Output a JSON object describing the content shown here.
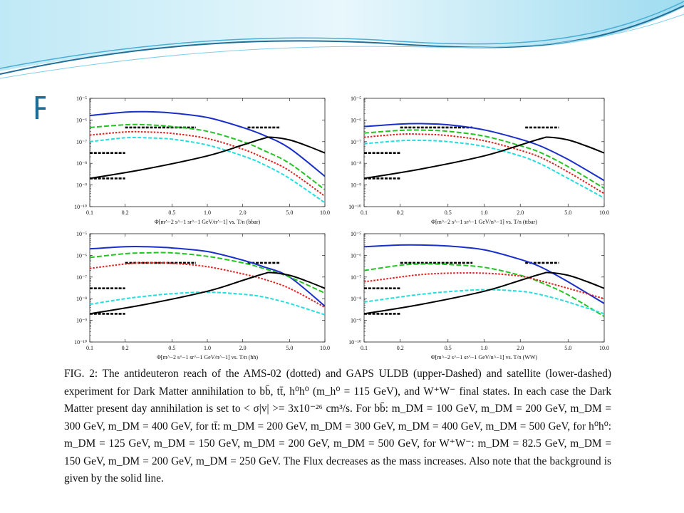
{
  "slide": {
    "title_fragment": "F"
  },
  "caption": "FIG. 2: The antideuteron reach of the AMS-02 (dotted) and GAPS ULDB (upper-Dashed) and satellite (lower-dashed) experiment for Dark Matter annihilation to bb̄, tt̄, h⁰h⁰ (m_h⁰ = 115 GeV), and W⁺W⁻ final states. In each case the Dark Matter present day annihilation is set to < σ|v| >= 3x10⁻²⁶ cm³/s. For bb̄: m_DM = 100 GeV, m_DM = 200 GeV, m_DM = 300 GeV, m_DM = 400 GeV, for tt̄: m_DM = 200 GeV, m_DM = 300 GeV, m_DM = 400 GeV, m_DM = 500 GeV, for h⁰h⁰: m_DM = 125 GeV, m_DM = 150 GeV, m_DM = 200 GeV, m_DM = 500 GeV, for W⁺W⁻: m_DM = 82.5 GeV, m_DM = 150 GeV, m_DM = 200 GeV, m_DM = 250 GeV. The Flux decreases as the mass increases. Also note that the background is given by the solid line.",
  "colors": {
    "header_dark": "#1f6f98",
    "header_light": "#7fd0ec",
    "title": "#1a6e99"
  },
  "chart_data": [
    {
      "type": "line",
      "xlabel": "Φ[m^−2 s^−1 sr^−1 GeV/n^−1] vs. T/n (bbar)",
      "xscale": "log",
      "yscale": "log",
      "xlim": [
        0.1,
        10.0
      ],
      "ylim": [
        1e-10,
        1e-05
      ],
      "xticks": [
        "0.1",
        "0.2",
        "0.5",
        "1.0",
        "2.0",
        "5.0",
        "10.0"
      ],
      "yticks": [
        "10⁻¹⁰",
        "10⁻⁹",
        "10⁻⁸",
        "10⁻⁷",
        "10⁻⁶",
        "10⁻⁵"
      ],
      "series": [
        {
          "style": "solid",
          "color": "#1a2fc9",
          "x": [
            0.1,
            0.2,
            0.3,
            0.5,
            1,
            2,
            3,
            5,
            10
          ],
          "y": [
            1.6e-06,
            2.3e-06,
            2.4e-06,
            2.1e-06,
            1.3e-06,
            4.5e-07,
            2e-07,
            5e-08,
            2.5e-09
          ]
        },
        {
          "style": "dashed",
          "color": "#22c422",
          "x": [
            0.1,
            0.2,
            0.3,
            0.5,
            1,
            2,
            3,
            5,
            10
          ],
          "y": [
            4.5e-07,
            6e-07,
            6e-07,
            5e-07,
            3e-07,
            1e-07,
            4e-08,
            1e-08,
            6e-10
          ]
        },
        {
          "style": "dotted",
          "color": "#e02020",
          "x": [
            0.1,
            0.2,
            0.3,
            0.5,
            1,
            2,
            3,
            5,
            10
          ],
          "y": [
            2e-07,
            2.8e-07,
            2.8e-07,
            2.4e-07,
            1.4e-07,
            4.5e-08,
            1.8e-08,
            4.5e-09,
            3e-10
          ]
        },
        {
          "style": "dashdot",
          "color": "#22dede",
          "x": [
            0.1,
            0.2,
            0.3,
            0.5,
            1,
            2,
            3,
            5,
            10
          ],
          "y": [
            1e-07,
            1.5e-07,
            1.5e-07,
            1.3e-07,
            7e-08,
            2.2e-08,
            9e-09,
            2e-09,
            1.5e-10
          ]
        },
        {
          "style": "solid",
          "color": "#000000",
          "x": [
            0.1,
            0.3,
            1,
            2,
            3,
            3.5,
            5,
            7,
            10
          ],
          "y": [
            2e-09,
            5.5e-09,
            2.2e-08,
            7e-08,
            1.4e-07,
            1.6e-07,
            1.2e-07,
            6.5e-08,
            3e-08
          ]
        }
      ],
      "sensitivity": [
        {
          "x": [
            0.1,
            0.2
          ],
          "y": 2e-09
        },
        {
          "x": [
            0.1,
            0.2
          ],
          "y": 3e-08
        },
        {
          "x": [
            0.2,
            0.8
          ],
          "y": 4.5e-07
        },
        {
          "x": [
            2.2,
            4.2
          ],
          "y": 4.5e-07
        }
      ]
    },
    {
      "type": "line",
      "xlabel": "Φ[m^−2 s^−1 sr^−1 GeV/n^−1] vs. T/n (ttbar)",
      "xscale": "log",
      "yscale": "log",
      "xlim": [
        0.1,
        10.0
      ],
      "ylim": [
        1e-10,
        1e-05
      ],
      "xticks": [
        "0.1",
        "0.2",
        "0.5",
        "1.0",
        "2.0",
        "5.0",
        "10.0"
      ],
      "yticks": [
        "10⁻¹⁰",
        "10⁻⁹",
        "10⁻⁸",
        "10⁻⁷",
        "10⁻⁶",
        "10⁻⁵"
      ],
      "series": [
        {
          "style": "solid",
          "color": "#1a2fc9",
          "x": [
            0.1,
            0.2,
            0.3,
            0.5,
            1,
            2,
            3,
            5,
            10
          ],
          "y": [
            5e-07,
            6.5e-07,
            6.8e-07,
            6e-07,
            3.5e-07,
            1.3e-07,
            6e-08,
            1.5e-08,
            1.6e-09
          ]
        },
        {
          "style": "dashed",
          "color": "#22c422",
          "x": [
            0.1,
            0.2,
            0.3,
            0.5,
            1,
            2,
            3,
            5,
            10
          ],
          "y": [
            2.5e-07,
            3.3e-07,
            3.4e-07,
            3e-07,
            1.8e-07,
            6.5e-08,
            3e-08,
            7e-09,
            7e-10
          ]
        },
        {
          "style": "dotted",
          "color": "#e02020",
          "x": [
            0.1,
            0.2,
            0.3,
            0.5,
            1,
            2,
            3,
            5,
            10
          ],
          "y": [
            1.6e-07,
            2.2e-07,
            2.2e-07,
            1.9e-07,
            1.1e-07,
            4e-08,
            1.8e-08,
            4e-09,
            4e-10
          ]
        },
        {
          "style": "dashdot",
          "color": "#22dede",
          "x": [
            0.1,
            0.2,
            0.3,
            0.5,
            1,
            2,
            3,
            5,
            10
          ],
          "y": [
            8e-08,
            1.1e-07,
            1.15e-07,
            1e-07,
            6e-08,
            2.2e-08,
            9e-09,
            2e-09,
            2.5e-10
          ]
        },
        {
          "style": "solid",
          "color": "#000000",
          "x": [
            0.1,
            0.3,
            1,
            2,
            3,
            3.5,
            5,
            7,
            10
          ],
          "y": [
            2e-09,
            5.5e-09,
            2.2e-08,
            7e-08,
            1.4e-07,
            1.6e-07,
            1.2e-07,
            6.5e-08,
            3e-08
          ]
        }
      ],
      "sensitivity": [
        {
          "x": [
            0.1,
            0.2
          ],
          "y": 2e-09
        },
        {
          "x": [
            0.1,
            0.2
          ],
          "y": 3e-08
        },
        {
          "x": [
            0.2,
            0.8
          ],
          "y": 4.5e-07
        },
        {
          "x": [
            2.2,
            4.2
          ],
          "y": 4.5e-07
        }
      ]
    },
    {
      "type": "line",
      "xlabel": "Φ[m^−2 s^−1 sr^−1 GeV/n^−1] vs. T/n (hh)",
      "xscale": "log",
      "yscale": "log",
      "xlim": [
        0.1,
        10.0
      ],
      "ylim": [
        1e-10,
        1e-05
      ],
      "xticks": [
        "0.1",
        "0.2",
        "0.5",
        "1.0",
        "2.0",
        "5.0",
        "10.0"
      ],
      "yticks": [
        "10⁻¹⁰",
        "10⁻⁹",
        "10⁻⁸",
        "10⁻⁷",
        "10⁻⁶",
        "10⁻⁵"
      ],
      "series": [
        {
          "style": "solid",
          "color": "#1a2fc9",
          "x": [
            0.1,
            0.2,
            0.3,
            0.5,
            1,
            2,
            3,
            5,
            10
          ],
          "y": [
            2e-06,
            2.5e-06,
            2.5e-06,
            2.2e-06,
            1.5e-06,
            6e-07,
            3e-07,
            1e-07,
            4.5e-09
          ]
        },
        {
          "style": "dashed",
          "color": "#22c422",
          "x": [
            0.1,
            0.2,
            0.3,
            0.5,
            1,
            2,
            3,
            5,
            10
          ],
          "y": [
            8e-07,
            1.2e-06,
            1.3e-06,
            1.3e-06,
            9e-07,
            4.5e-07,
            2.5e-07,
            1e-07,
            1.8e-08
          ]
        },
        {
          "style": "dotted",
          "color": "#e02020",
          "x": [
            0.1,
            0.2,
            0.3,
            0.5,
            1,
            2,
            3,
            5,
            10
          ],
          "y": [
            2.5e-07,
            4e-07,
            4.5e-07,
            4.3e-07,
            3e-07,
            1.4e-07,
            8e-08,
            3e-08,
            4e-09
          ]
        },
        {
          "style": "dashdot",
          "color": "#22dede",
          "x": [
            0.1,
            0.2,
            0.3,
            0.5,
            1,
            2,
            3,
            5,
            10
          ],
          "y": [
            5.5e-09,
            1e-08,
            1.3e-08,
            1.7e-08,
            2e-08,
            1.6e-08,
            1.2e-08,
            6e-09,
            1.8e-09
          ]
        },
        {
          "style": "solid",
          "color": "#000000",
          "x": [
            0.1,
            0.3,
            1,
            2,
            3,
            3.5,
            5,
            7,
            10
          ],
          "y": [
            2e-09,
            5.5e-09,
            2.2e-08,
            7e-08,
            1.4e-07,
            1.6e-07,
            1.2e-07,
            6.5e-08,
            3e-08
          ]
        }
      ],
      "sensitivity": [
        {
          "x": [
            0.1,
            0.2
          ],
          "y": 2e-09
        },
        {
          "x": [
            0.1,
            0.2
          ],
          "y": 3e-08
        },
        {
          "x": [
            0.2,
            0.8
          ],
          "y": 4.5e-07
        },
        {
          "x": [
            2.2,
            4.2
          ],
          "y": 4.5e-07
        }
      ]
    },
    {
      "type": "line",
      "xlabel": "Φ[m^−2 s^−1 sr^−1 GeV/n^−1] vs. T/n (WW)",
      "xscale": "log",
      "yscale": "log",
      "xlim": [
        0.1,
        10.0
      ],
      "ylim": [
        1e-10,
        1e-05
      ],
      "xticks": [
        "0.1",
        "0.2",
        "0.5",
        "1.0",
        "2.0",
        "5.0",
        "10.0"
      ],
      "yticks": [
        "10⁻¹⁰",
        "10⁻⁹",
        "10⁻⁸",
        "10⁻⁷",
        "10⁻⁶",
        "10⁻⁵"
      ],
      "series": [
        {
          "style": "solid",
          "color": "#1a2fc9",
          "x": [
            0.1,
            0.2,
            0.3,
            0.5,
            1,
            2,
            3,
            5,
            10
          ],
          "y": [
            2.5e-06,
            3e-06,
            3e-06,
            2.7e-06,
            1.8e-06,
            6.5e-07,
            2.8e-07,
            6e-08,
            6e-09
          ]
        },
        {
          "style": "dashed",
          "color": "#22c422",
          "x": [
            0.1,
            0.2,
            0.3,
            0.5,
            1,
            2,
            3,
            5,
            10
          ],
          "y": [
            2e-07,
            3.5e-07,
            4e-07,
            3.8e-07,
            2.8e-07,
            1.2e-07,
            5.5e-08,
            1.5e-08,
            1.5e-09
          ]
        },
        {
          "style": "dotted",
          "color": "#e02020",
          "x": [
            0.1,
            0.2,
            0.3,
            0.5,
            1,
            2,
            3,
            5,
            10
          ],
          "y": [
            6e-08,
            1e-07,
            1.3e-07,
            1.5e-07,
            1.5e-07,
            1.1e-07,
            6.5e-08,
            3e-08,
            1e-08
          ]
        },
        {
          "style": "dashdot",
          "color": "#22dede",
          "x": [
            0.1,
            0.2,
            0.3,
            0.5,
            1,
            2,
            3,
            5,
            10
          ],
          "y": [
            7e-09,
            1.2e-08,
            1.6e-08,
            2.1e-08,
            2.6e-08,
            2.2e-08,
            1.5e-08,
            7e-09,
            2e-09
          ]
        },
        {
          "style": "solid",
          "color": "#000000",
          "x": [
            0.1,
            0.3,
            1,
            2,
            3,
            3.5,
            5,
            7,
            10
          ],
          "y": [
            2e-09,
            5.5e-09,
            2.2e-08,
            7e-08,
            1.4e-07,
            1.6e-07,
            1.2e-07,
            6.5e-08,
            3e-08
          ]
        }
      ],
      "sensitivity": [
        {
          "x": [
            0.1,
            0.2
          ],
          "y": 2e-09
        },
        {
          "x": [
            0.1,
            0.2
          ],
          "y": 3e-08
        },
        {
          "x": [
            0.2,
            0.8
          ],
          "y": 4.5e-07
        },
        {
          "x": [
            2.2,
            4.2
          ],
          "y": 4.5e-07
        }
      ]
    }
  ]
}
